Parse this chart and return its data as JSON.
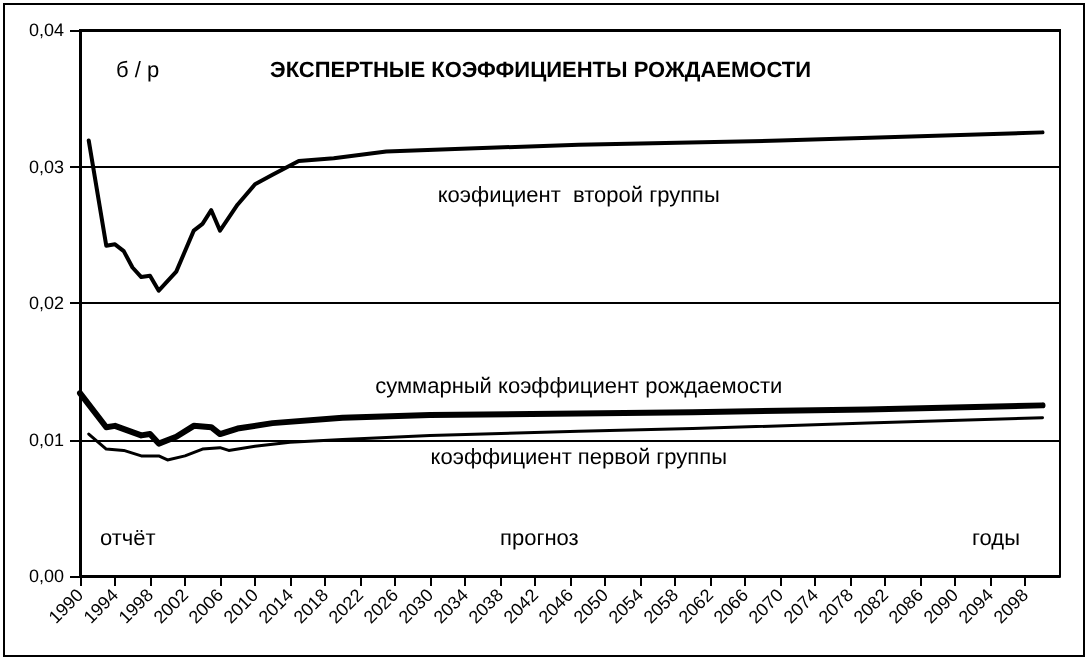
{
  "chart_data": {
    "type": "line",
    "title": "ЭКСПЕРТНЫЕ КОЭФФИЦИЕНТЫ РОЖДАЕМОСТИ",
    "ylabel": "б / р",
    "xlabel": "годы",
    "annotations": [
      "отчёт",
      "прогноз"
    ],
    "xlim": [
      1990,
      2102
    ],
    "xticks": [
      1990,
      1994,
      1998,
      2002,
      2006,
      2010,
      2014,
      2018,
      2022,
      2026,
      2030,
      2034,
      2038,
      2042,
      2046,
      2050,
      2054,
      2058,
      2062,
      2066,
      2070,
      2074,
      2078,
      2082,
      2086,
      2090,
      2094,
      2098
    ],
    "ylim": [
      0,
      0.04
    ],
    "yticks": [
      {
        "value": 0,
        "label": "0,00"
      },
      {
        "value": 0.01,
        "label": "0,01"
      },
      {
        "value": 0.02,
        "label": "0,02"
      },
      {
        "value": 0.03,
        "label": "0,03"
      },
      {
        "value": 0.04,
        "label": "0,04"
      }
    ],
    "grid": "y",
    "legend": false,
    "marker": "none",
    "line_style": "solid",
    "series": [
      {
        "name": "коэфициент  второй группы",
        "color": "#000000",
        "x": [
          1991,
          1993,
          1994,
          1995,
          1996,
          1997,
          1998,
          1999,
          2001,
          2003,
          2004,
          2005,
          2006,
          2008,
          2010,
          2012,
          2015,
          2019,
          2025,
          2047,
          2070,
          2100
        ],
        "values": [
          0.0319,
          0.0242,
          0.0243,
          0.0238,
          0.0226,
          0.0219,
          0.022,
          0.0209,
          0.0223,
          0.0253,
          0.0258,
          0.0268,
          0.0253,
          0.0272,
          0.0287,
          0.0294,
          0.0304,
          0.0306,
          0.0311,
          0.0316,
          0.0319,
          0.0325
        ]
      },
      {
        "name": "суммарный коэффициент рождаемости",
        "color": "#000000",
        "x": [
          1990,
          1993,
          1994,
          1997,
          1998,
          1999,
          2001,
          2003,
          2005,
          2006,
          2008,
          2012,
          2020,
          2030,
          2047,
          2060,
          2080,
          2100
        ],
        "values": [
          0.0134,
          0.0109,
          0.011,
          0.0103,
          0.0104,
          0.0097,
          0.0102,
          0.011,
          0.0109,
          0.0104,
          0.0108,
          0.0112,
          0.0116,
          0.0118,
          0.0119,
          0.012,
          0.0122,
          0.0125
        ]
      },
      {
        "name": "коэффициент первой группы",
        "color": "#000000",
        "x": [
          1991,
          1993,
          1995,
          1997,
          1999,
          2000,
          2002,
          2004,
          2006,
          2007,
          2010,
          2014,
          2020,
          2030,
          2047,
          2060,
          2080,
          2100
        ],
        "values": [
          0.0104,
          0.0093,
          0.0092,
          0.0088,
          0.0088,
          0.0085,
          0.0088,
          0.0093,
          0.0094,
          0.0092,
          0.0095,
          0.0098,
          0.01,
          0.0103,
          0.0106,
          0.0108,
          0.0112,
          0.0116
        ]
      }
    ]
  }
}
